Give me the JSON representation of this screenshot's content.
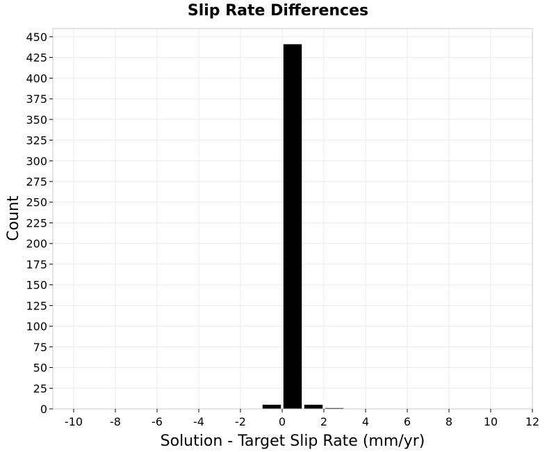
{
  "chart_data": {
    "type": "bar",
    "title": "Slip Rate Differences",
    "xlabel": "Solution - Target Slip Rate (mm/yr)",
    "ylabel": "Count",
    "xlim": [
      -11,
      12
    ],
    "ylim": [
      0,
      460
    ],
    "bin_width": 1,
    "x_ticks": [
      -10,
      -8,
      -6,
      -4,
      -2,
      0,
      2,
      4,
      6,
      8,
      10,
      12
    ],
    "y_ticks": [
      0,
      25,
      50,
      75,
      100,
      125,
      150,
      175,
      200,
      225,
      250,
      275,
      300,
      325,
      350,
      375,
      400,
      425,
      450
    ],
    "x_tick_labels": [
      "-10",
      "-8",
      "-6",
      "-4",
      "-2",
      "0",
      "2",
      "4",
      "6",
      "8",
      "10",
      "12"
    ],
    "y_tick_labels": [
      "0",
      "25",
      "50",
      "75",
      "100",
      "125",
      "150",
      "175",
      "200",
      "225",
      "250",
      "275",
      "300",
      "325",
      "350",
      "375",
      "400",
      "425",
      "450"
    ],
    "bins": [
      {
        "x": -0.5,
        "value": 5
      },
      {
        "x": 0.5,
        "value": 441
      },
      {
        "x": 1.5,
        "value": 5
      },
      {
        "x": 2.5,
        "value": 1
      }
    ],
    "grid": true,
    "bar_color": "#000000",
    "grid_color": "#ebebeb",
    "frame_color": "#c8c8c8"
  }
}
